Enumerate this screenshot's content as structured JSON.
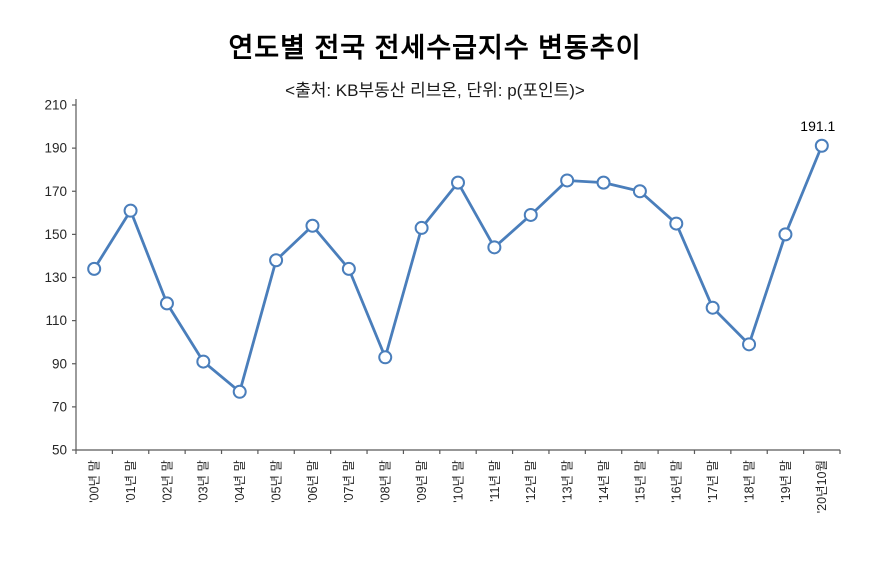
{
  "chart_data": {
    "type": "line",
    "title": "연도별 전국 전세수급지수 변동추이",
    "subtitle": "<출처: KB부동산 리브온, 단위: p(포인트)>",
    "categories": [
      "'00년 말",
      "'01년 말",
      "'02년 말",
      "'03년 말",
      "'04년 말",
      "'05년 말",
      "'06년 말",
      "'07년 말",
      "'08년 말",
      "'09년 말",
      "'10년 말",
      "'11년 말",
      "'12년 말",
      "'13년 말",
      "'14년 말",
      "'15년 말",
      "'16년 말",
      "'17년 말",
      "'18년 말",
      "'19년 말",
      "'20년10월"
    ],
    "values": [
      134,
      161,
      118,
      91,
      77,
      138,
      154,
      134,
      93,
      153,
      174,
      144,
      159,
      175,
      174,
      170,
      155,
      116,
      99,
      150,
      191.1
    ],
    "yticks": [
      50,
      70,
      90,
      110,
      130,
      150,
      170,
      190,
      210
    ],
    "ylim": [
      50,
      210
    ],
    "last_point_label": "191.1",
    "grid": false,
    "legend": "none",
    "line_color": "#4A7EBB",
    "marker_fill": "#ffffff",
    "axis_color": "#595959",
    "text_color": "#262626"
  }
}
